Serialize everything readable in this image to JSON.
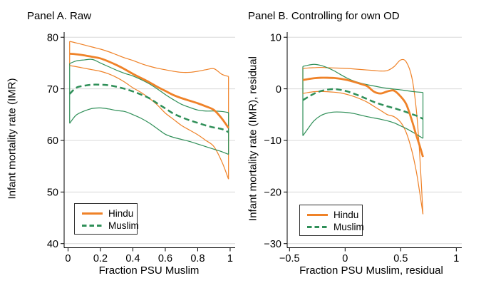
{
  "colors": {
    "hindu": "#EF8228",
    "muslim": "#2F8F58",
    "grid": "#D8D8D8",
    "axis": "#000000"
  },
  "chart_data": [
    {
      "type": "line",
      "panel": "A",
      "title": "Panel A. Raw",
      "xlabel": "Fraction PSU Muslim",
      "ylabel": "Infant mortality rate (IMR)",
      "grid": "horizontal",
      "xlim": [
        -0.024,
        1.031
      ],
      "ylim": [
        39.2,
        81.0
      ],
      "x_ticks": [
        0,
        0.2,
        0.4,
        0.6,
        0.8,
        1
      ],
      "x_tick_labels": [
        "0",
        "0.2",
        "0.4",
        "0.6",
        "0.8",
        "1"
      ],
      "y_ticks": [
        80,
        70,
        60,
        50,
        40
      ],
      "y_tick_labels": [
        "80",
        "70",
        "60",
        "50",
        "40"
      ],
      "legend": {
        "position": "bottom-left",
        "entries": [
          {
            "label": "Hindu",
            "group": "hindu",
            "style": "solid"
          },
          {
            "label": "Muslim",
            "group": "muslim",
            "style": "dashed"
          }
        ]
      },
      "x": [
        0.01,
        0.05,
        0.1,
        0.15,
        0.2,
        0.25,
        0.3,
        0.35,
        0.4,
        0.45,
        0.5,
        0.55,
        0.6,
        0.65,
        0.7,
        0.75,
        0.8,
        0.85,
        0.9,
        0.95,
        0.99
      ],
      "series": [
        {
          "name": "Hindu",
          "role": "main",
          "group": "hindu",
          "style": "solid",
          "width": 2.8,
          "y": [
            76.8,
            76.7,
            76.5,
            76.2,
            75.9,
            75.3,
            74.6,
            73.8,
            72.9,
            72.1,
            71.3,
            70.4,
            69.6,
            68.8,
            68.2,
            67.7,
            67.2,
            66.6,
            65.9,
            64.2,
            62.4
          ]
        },
        {
          "name": "Hindu CI upper",
          "role": "ci-upper",
          "group": "hindu",
          "style": "solid",
          "width": 1.2,
          "y": [
            79.2,
            78.9,
            78.5,
            78.1,
            77.7,
            77.2,
            76.6,
            76.0,
            75.5,
            74.9,
            74.4,
            74.0,
            73.7,
            73.4,
            73.2,
            73.2,
            73.4,
            73.7,
            73.9,
            72.8,
            72.4
          ]
        },
        {
          "name": "Hindu CI lower",
          "role": "ci-lower",
          "group": "hindu",
          "style": "solid",
          "width": 1.2,
          "y": [
            74.5,
            74.3,
            74.0,
            73.7,
            73.4,
            72.9,
            72.2,
            71.3,
            70.2,
            69.3,
            68.2,
            66.9,
            65.3,
            64.1,
            62.9,
            62.0,
            61.1,
            60.0,
            58.8,
            55.8,
            52.5
          ]
        },
        {
          "name": "Muslim",
          "role": "main",
          "group": "muslim",
          "style": "dashed",
          "width": 2.5,
          "y": [
            69.0,
            70.2,
            70.6,
            70.8,
            70.8,
            70.7,
            70.4,
            70.0,
            69.5,
            68.9,
            68.2,
            67.2,
            66.2,
            65.2,
            64.5,
            63.9,
            63.4,
            62.9,
            62.5,
            62.2,
            61.6
          ]
        },
        {
          "name": "Muslim CI upper",
          "role": "ci-upper",
          "group": "muslim",
          "style": "solid",
          "width": 1.2,
          "y": [
            74.9,
            75.4,
            75.6,
            75.7,
            75.0,
            74.3,
            73.6,
            73.0,
            72.5,
            71.8,
            71.0,
            70.0,
            68.9,
            67.9,
            67.0,
            66.4,
            65.9,
            65.7,
            65.7,
            65.6,
            65.4
          ]
        },
        {
          "name": "Muslim CI lower",
          "role": "ci-lower",
          "group": "muslim",
          "style": "solid",
          "width": 1.2,
          "y": [
            63.3,
            64.9,
            65.7,
            66.2,
            66.3,
            66.1,
            65.8,
            65.6,
            65.0,
            64.3,
            63.4,
            62.3,
            61.2,
            60.6,
            60.2,
            59.8,
            59.3,
            58.8,
            58.3,
            57.8,
            57.3
          ]
        }
      ],
      "edge_caps": [
        {
          "group": "hindu",
          "x": 0.01,
          "y_from": 79.2,
          "y_to": 74.5
        },
        {
          "group": "muslim",
          "x": 0.01,
          "y_from": 74.9,
          "y_to": 63.3
        },
        {
          "group": "hindu",
          "x": 0.99,
          "y_from": 72.4,
          "y_to": 52.5
        },
        {
          "group": "muslim",
          "x": 0.99,
          "y_from": 65.4,
          "y_to": 57.3
        }
      ]
    },
    {
      "type": "line",
      "panel": "B",
      "title": "Panel B. Controlling for own OD",
      "xlabel": "Fraction PSU Muslim, residual",
      "ylabel": "Infant mortality rate (IMR), residual",
      "grid": "horizontal",
      "xlim": [
        -0.521,
        1.049
      ],
      "ylim": [
        -30.8,
        11.0
      ],
      "x_ticks": [
        -0.5,
        0,
        0.5,
        1
      ],
      "x_tick_labels": [
        "−0.5",
        "0",
        "0.5",
        "1"
      ],
      "y_ticks": [
        10,
        0,
        -10,
        -20,
        -30
      ],
      "y_tick_labels": [
        "10",
        "0",
        "−10",
        "−20",
        "−30"
      ],
      "legend": {
        "position": "bottom-left",
        "entries": [
          {
            "label": "Hindu",
            "group": "hindu",
            "style": "solid"
          },
          {
            "label": "Muslim",
            "group": "muslim",
            "style": "dashed"
          }
        ]
      },
      "x": [
        -0.38,
        -0.33,
        -0.28,
        -0.22,
        -0.16,
        -0.1,
        -0.04,
        0.02,
        0.08,
        0.14,
        0.2,
        0.26,
        0.32,
        0.38,
        0.44,
        0.5,
        0.55,
        0.6,
        0.64,
        0.67,
        0.7
      ],
      "series": [
        {
          "name": "Hindu",
          "role": "main",
          "group": "hindu",
          "style": "solid",
          "width": 2.8,
          "y": [
            1.7,
            1.9,
            2.05,
            2.15,
            2.15,
            2.1,
            1.95,
            1.7,
            1.35,
            0.95,
            0.5,
            -0.55,
            -0.9,
            -0.5,
            -0.35,
            -1.5,
            -3.0,
            -6.1,
            -9.0,
            -11.0,
            -13.2
          ]
        },
        {
          "name": "Hindu CI upper",
          "role": "ci-upper",
          "group": "hindu",
          "style": "solid",
          "width": 1.2,
          "y": [
            3.95,
            4.05,
            4.1,
            4.15,
            4.1,
            4.05,
            4.0,
            3.95,
            3.85,
            3.75,
            3.65,
            3.55,
            3.45,
            3.55,
            4.3,
            5.6,
            5.2,
            2.2,
            -4.0,
            -12.5,
            -24.3
          ]
        },
        {
          "name": "Hindu CI lower",
          "role": "ci-lower",
          "group": "hindu",
          "style": "solid",
          "width": 1.2,
          "y": [
            -0.9,
            -0.7,
            -0.55,
            -0.5,
            -0.55,
            -0.65,
            -0.8,
            -1.1,
            -1.5,
            -2.0,
            -2.6,
            -3.4,
            -4.2,
            -5.0,
            -5.4,
            -6.5,
            -8.5,
            -12.0,
            -16.0,
            -20.0,
            -24.3
          ]
        },
        {
          "name": "Muslim",
          "role": "main",
          "group": "muslim",
          "style": "dashed",
          "width": 2.5,
          "y": [
            -2.2,
            -1.55,
            -0.95,
            -0.45,
            -0.15,
            -0.05,
            -0.2,
            -0.5,
            -0.95,
            -1.45,
            -2.0,
            -2.55,
            -3.0,
            -3.4,
            -3.75,
            -4.15,
            -4.5,
            -4.9,
            -5.2,
            -5.5,
            -5.8
          ]
        },
        {
          "name": "Muslim CI upper",
          "role": "ci-upper",
          "group": "muslim",
          "style": "solid",
          "width": 1.2,
          "y": [
            4.35,
            4.6,
            4.75,
            4.55,
            4.1,
            3.5,
            2.75,
            2.05,
            1.5,
            1.1,
            0.8,
            0.55,
            0.3,
            0.1,
            -0.05,
            -0.2,
            -0.35,
            -0.5,
            -0.6,
            -0.65,
            -0.7
          ]
        },
        {
          "name": "Muslim CI lower",
          "role": "ci-lower",
          "group": "muslim",
          "style": "solid",
          "width": 1.2,
          "y": [
            -9.1,
            -7.6,
            -6.2,
            -5.2,
            -4.7,
            -4.5,
            -4.5,
            -4.6,
            -4.8,
            -5.1,
            -5.4,
            -5.65,
            -5.9,
            -6.2,
            -6.6,
            -7.2,
            -7.7,
            -8.3,
            -8.8,
            -9.2,
            -9.6
          ]
        }
      ],
      "edge_caps": [
        {
          "group": "hindu",
          "x": -0.38,
          "y_from": 3.95,
          "y_to": -0.9
        },
        {
          "group": "muslim",
          "x": -0.38,
          "y_from": 4.35,
          "y_to": -9.1
        },
        {
          "group": "muslim",
          "x": 0.7,
          "y_from": -0.7,
          "y_to": -9.6
        }
      ]
    }
  ]
}
